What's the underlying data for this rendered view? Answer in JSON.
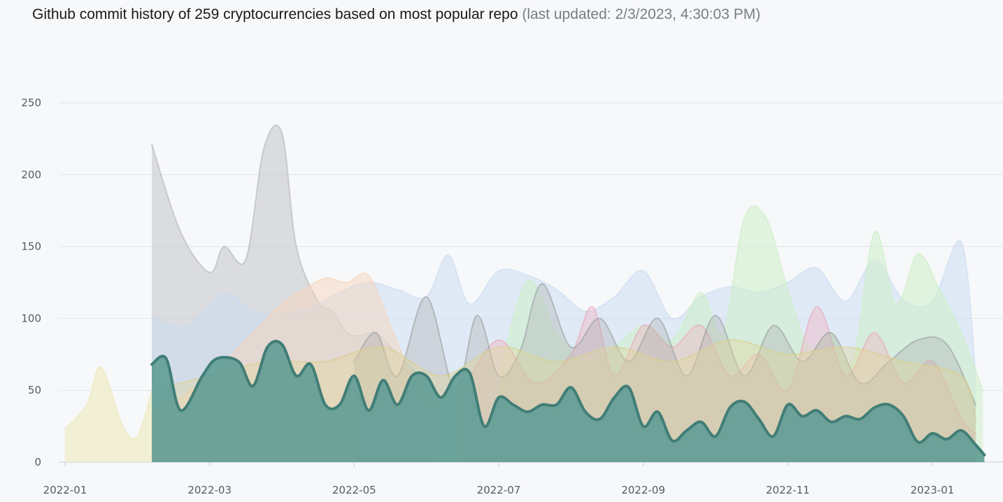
{
  "title": {
    "main": "Github commit history of 259 cryptocurrencies based on most popular repo ",
    "updated_prefix": "(last updated: ",
    "updated_value": "2/3/2023, 4:30:03 PM",
    "updated_suffix": ")"
  },
  "chart_data": {
    "type": "area",
    "title": "Github commit history of 259 cryptocurrencies based on most popular repo",
    "xlabel": "",
    "ylabel": "",
    "ylim": [
      0,
      250
    ],
    "y_ticks": [
      "0",
      "50",
      "100",
      "150",
      "200",
      "250"
    ],
    "x_ticks": [
      "2022-01",
      "2022-03",
      "2022-05",
      "2022-07",
      "2022-09",
      "2022-11",
      "2023-01"
    ],
    "grid": true,
    "series": [
      {
        "name": "gray",
        "color": "#b9bbbe",
        "opacity": 0.45,
        "stroke": "#b3b5b8",
        "x": [
          1.2,
          1.6,
          2.0,
          2.2,
          2.5,
          2.75,
          3.0,
          3.2,
          3.5,
          3.7,
          3.9,
          4.1,
          4.3,
          4.6,
          4.9,
          5.1
        ],
        "y": [
          221,
          160,
          132,
          150,
          141,
          218,
          229,
          150,
          112,
          105,
          90,
          88,
          90,
          75,
          60,
          50
        ]
      },
      {
        "name": "light-yellow-early",
        "color": "#eeeac0",
        "opacity": 0.65,
        "stroke": "#eeeac0",
        "x": [
          0,
          0.3,
          0.5,
          0.8,
          1.0,
          1.2
        ],
        "y": [
          23,
          40,
          66,
          25,
          18,
          50
        ]
      },
      {
        "name": "light-blue",
        "color": "#c9dcf2",
        "opacity": 0.5,
        "stroke": "#c9dcf2",
        "x": [
          1.2,
          1.7,
          2.2,
          2.6,
          3.0,
          3.4,
          3.8,
          4.2,
          4.6,
          5.0,
          5.3,
          5.6,
          6.0,
          6.4,
          6.8,
          7.2,
          7.6,
          8.0,
          8.4,
          8.8,
          9.2,
          9.6,
          10.0,
          10.4,
          10.8,
          11.2,
          11.6,
          12.0,
          12.4,
          12.6
        ],
        "y": [
          100,
          95,
          117,
          105,
          103,
          108,
          118,
          125,
          120,
          115,
          144,
          110,
          133,
          130,
          120,
          105,
          115,
          133,
          100,
          115,
          122,
          118,
          125,
          135,
          112,
          140,
          113,
          112,
          153,
          60
        ]
      },
      {
        "name": "peach",
        "color": "#f6d3bc",
        "opacity": 0.5,
        "stroke": "#f6d3bc",
        "x": [
          1.2,
          2.0,
          2.6,
          3.0,
          3.3,
          3.6,
          3.9,
          4.2,
          4.5,
          4.8,
          5.1
        ],
        "y": [
          30,
          60,
          90,
          110,
          120,
          128,
          125,
          130,
          95,
          60,
          40
        ]
      },
      {
        "name": "light-green",
        "color": "#cdeec8",
        "opacity": 0.55,
        "stroke": "#cdeec8",
        "x": [
          6.0,
          6.4,
          6.8,
          7.2,
          7.6,
          8.0,
          8.4,
          8.8,
          9.1,
          9.4,
          9.7,
          10.0,
          10.3,
          10.6,
          10.9,
          11.2,
          11.5,
          11.8,
          12.1,
          12.4,
          12.7
        ],
        "y": [
          60,
          126,
          90,
          70,
          80,
          95,
          85,
          118,
          90,
          170,
          170,
          120,
          80,
          90,
          70,
          160,
          110,
          145,
          120,
          90,
          50
        ]
      },
      {
        "name": "pink",
        "color": "#efb8c4",
        "opacity": 0.45,
        "stroke": "#e9a7b6",
        "x": [
          5.5,
          6.0,
          6.5,
          7.0,
          7.3,
          7.6,
          8.0,
          8.4,
          8.8,
          9.2,
          9.6,
          10.0,
          10.4,
          10.8,
          11.2,
          11.6,
          12.0,
          12.4,
          12.6
        ],
        "y": [
          50,
          85,
          55,
          75,
          108,
          60,
          95,
          80,
          95,
          60,
          75,
          50,
          108,
          60,
          90,
          55,
          70,
          30,
          20
        ]
      },
      {
        "name": "dark-gray",
        "color": "#a9abad",
        "opacity": 0.35,
        "stroke": "#9a9ca0",
        "x": [
          4.0,
          4.3,
          4.6,
          5.0,
          5.4,
          5.7,
          6.0,
          6.3,
          6.6,
          7.0,
          7.4,
          7.8,
          8.2,
          8.6,
          9.0,
          9.4,
          9.8,
          10.2,
          10.6,
          11.0,
          11.4,
          11.8,
          12.2,
          12.6
        ],
        "y": [
          70,
          90,
          60,
          115,
          50,
          102,
          60,
          78,
          124,
          80,
          100,
          70,
          100,
          60,
          102,
          60,
          95,
          70,
          90,
          55,
          70,
          85,
          82,
          40
        ]
      },
      {
        "name": "khaki",
        "color": "#e0d89c",
        "opacity": 0.4,
        "stroke": "#d9cf8a",
        "x": [
          1.2,
          2.0,
          2.8,
          3.6,
          4.4,
          5.2,
          6.0,
          6.8,
          7.6,
          8.4,
          9.2,
          10.0,
          10.8,
          11.6,
          12.4,
          12.6
        ],
        "y": [
          50,
          60,
          70,
          70,
          80,
          60,
          80,
          70,
          80,
          70,
          85,
          75,
          80,
          70,
          60,
          30
        ]
      },
      {
        "name": "teal-main",
        "color": "#5f9c95",
        "opacity": 0.9,
        "stroke": "#417e77",
        "stroke_width": 4,
        "x": [
          1.2,
          1.4,
          1.6,
          1.9,
          2.1,
          2.4,
          2.6,
          2.8,
          3.0,
          3.2,
          3.4,
          3.6,
          3.8,
          4.0,
          4.2,
          4.4,
          4.6,
          4.8,
          5.0,
          5.2,
          5.4,
          5.6,
          5.8,
          6.0,
          6.2,
          6.4,
          6.6,
          6.8,
          7.0,
          7.2,
          7.4,
          7.6,
          7.8,
          8.0,
          8.2,
          8.4,
          8.6,
          8.8,
          9.0,
          9.2,
          9.4,
          9.6,
          9.8,
          10.0,
          10.2,
          10.4,
          10.6,
          10.8,
          11.0,
          11.2,
          11.4,
          11.6,
          11.8,
          12.0,
          12.2,
          12.4,
          12.6,
          12.72
        ],
        "y": [
          68,
          72,
          36,
          60,
          72,
          70,
          53,
          80,
          82,
          60,
          68,
          40,
          40,
          60,
          36,
          57,
          40,
          60,
          60,
          45,
          60,
          62,
          25,
          45,
          40,
          35,
          40,
          40,
          52,
          35,
          30,
          45,
          52,
          25,
          35,
          15,
          22,
          28,
          18,
          38,
          42,
          30,
          18,
          40,
          32,
          36,
          28,
          32,
          30,
          38,
          40,
          32,
          14,
          20,
          16,
          22,
          12,
          5
        ]
      }
    ]
  }
}
